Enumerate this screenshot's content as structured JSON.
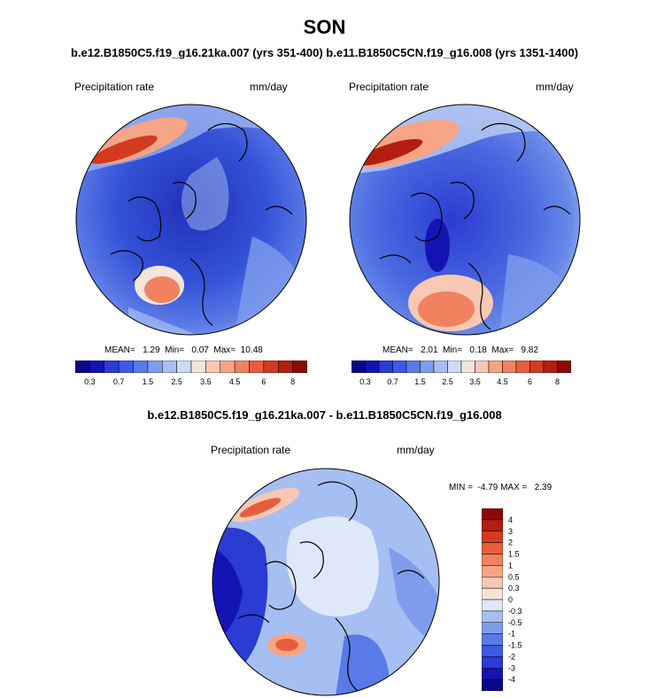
{
  "season": "SON",
  "top_caption": "b.e12.B1850C5.f19_g16.21ka.007 (yrs 351-400) b.e11.B1850C5CN.f19_g16.008 (yrs 1351-1400)",
  "diff_caption": "b.e12.B1850C5.f19_g16.21ka.007 - b.e11.B1850C5CN.f19_g16.008",
  "panels": {
    "left": {
      "variable": "Precipitation rate",
      "units": "mm/day",
      "stats": "MEAN=   1.29  Min=   0.07  Max=  10.48"
    },
    "right": {
      "variable": "Precipitation rate",
      "units": "mm/day",
      "stats": "MEAN=   2.01  Min=   0.18  Max=   9.82"
    },
    "diff": {
      "variable": "Precipitation rate",
      "units": "mm/day",
      "stats": "MIN =  -4.79 MAX =   2.39"
    }
  },
  "abs_colorbar": {
    "colors": [
      "#08088a",
      "#1414b4",
      "#2a3cd2",
      "#3d5ae6",
      "#5a7ae8",
      "#7f9cec",
      "#a6bff2",
      "#ccdcf6",
      "#f3e4dc",
      "#f7c8b4",
      "#f5a586",
      "#f08260",
      "#e85e3c",
      "#d43a20",
      "#b41e0e",
      "#8a0a04"
    ],
    "tick_labels": [
      "0.3",
      "0.7",
      "1.5",
      "2.5",
      "3.5",
      "4.5",
      "6",
      "8"
    ]
  },
  "diff_colorbar": {
    "colors": [
      "#08088a",
      "#1414b4",
      "#2a3cd2",
      "#3d5ae6",
      "#5a7ae8",
      "#7f9cec",
      "#a6bff2",
      "#dfe8f8",
      "#f8e2d6",
      "#f7c8b4",
      "#f5a586",
      "#f08260",
      "#e85e3c",
      "#d43a20",
      "#b41e0e",
      "#8a0a04"
    ],
    "tick_labels": [
      "4",
      "3",
      "2",
      "1.5",
      "1",
      "0.5",
      "0.3",
      "0",
      "-0.3",
      "-0.5",
      "-1",
      "-1.5",
      "-2",
      "-3",
      "-4"
    ]
  }
}
